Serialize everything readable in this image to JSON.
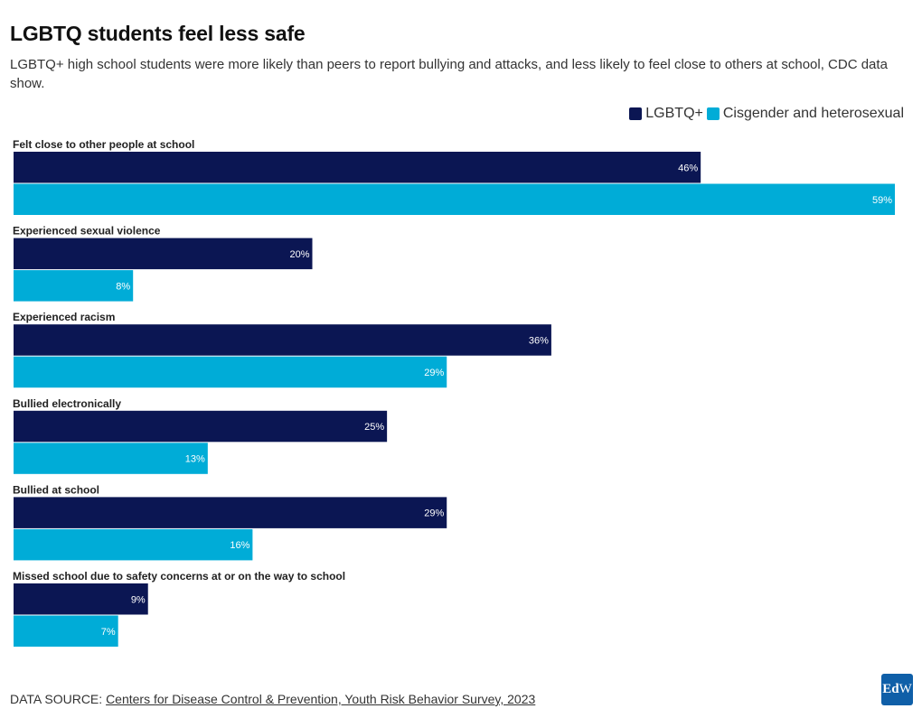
{
  "chart_data": {
    "type": "bar",
    "orientation": "horizontal",
    "title": "LGBTQ students feel less safe",
    "subtitle": "LGBTQ+ high school students were more likely than peers to report bullying and attacks, and less likely to feel close to others at school, CDC data show.",
    "categories": [
      "Felt close to other people at school",
      "Experienced sexual violence",
      "Experienced racism",
      "Bullied electronically",
      "Bullied at school",
      "Missed school due to safety concerns at or on the way to school"
    ],
    "series": [
      {
        "name": "LGBTQ+",
        "color": "#0b1653",
        "values": [
          46,
          20,
          36,
          25,
          29,
          9
        ]
      },
      {
        "name": "Cisgender and heterosexual",
        "color": "#00acd7",
        "values": [
          59,
          8,
          29,
          13,
          16,
          7
        ]
      }
    ],
    "value_suffix": "%",
    "xlim": [
      0,
      59
    ],
    "legend_position": "top-right",
    "grid": false
  },
  "source": {
    "label": "DATA SOURCE: ",
    "link_text": "Centers for Disease Control & Prevention, Youth Risk Behavior Survey, 2023"
  },
  "logo": {
    "text_bold": "Ed",
    "text_regular": "W"
  }
}
